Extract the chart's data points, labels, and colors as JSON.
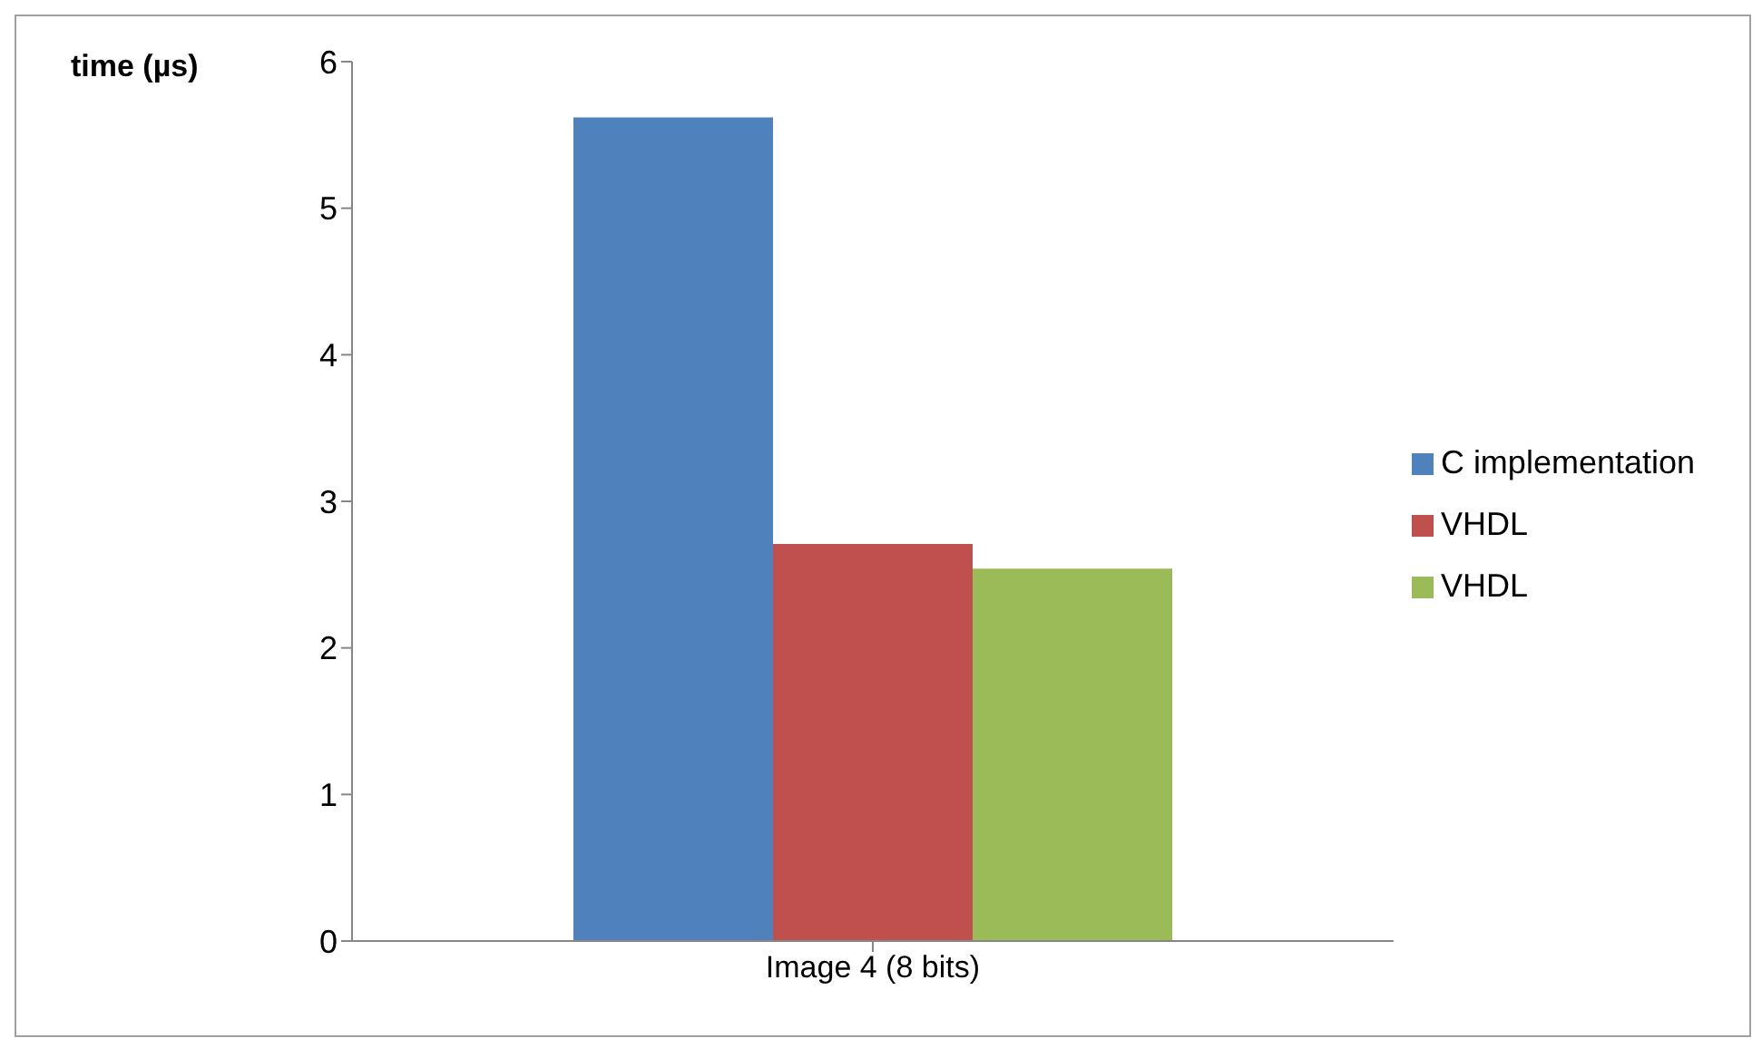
{
  "chart_data": {
    "type": "bar",
    "ylabel": "time (µs)",
    "categories": [
      "Image 4 (8 bits)"
    ],
    "series": [
      {
        "name": "C implementation",
        "color": "#4f81bd",
        "values": [
          5.62
        ]
      },
      {
        "name": "VHDL",
        "color": "#c0504d",
        "values": [
          2.71
        ]
      },
      {
        "name": "VHDL",
        "color": "#9bbb59",
        "values": [
          2.54
        ]
      }
    ],
    "ylim": [
      0,
      6
    ],
    "yticks": [
      0,
      1,
      2,
      3,
      4,
      5,
      6
    ],
    "legend": "right"
  }
}
